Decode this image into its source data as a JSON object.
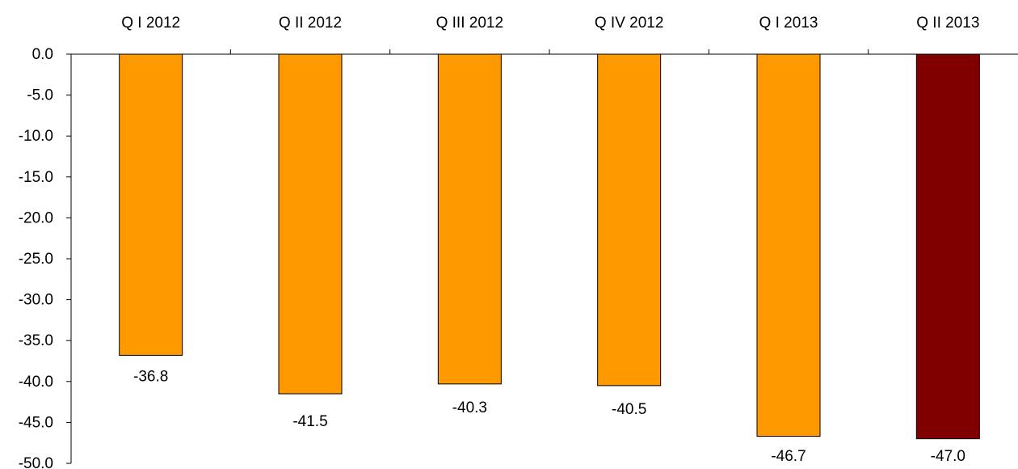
{
  "chart_data": {
    "type": "bar",
    "title": "",
    "xlabel": "",
    "ylabel": "",
    "categories": [
      "Q I 2012",
      "Q II 2012",
      "Q III 2012",
      "Q IV 2012",
      "Q I 2013",
      "Q II 2013"
    ],
    "values": [
      -36.8,
      -41.5,
      -40.3,
      -40.5,
      -46.7,
      -47.0
    ],
    "value_labels": [
      "-36.8",
      "-41.5",
      "-40.3",
      "-40.5",
      "-46.7",
      "-47.0"
    ],
    "ylim": [
      -50,
      0
    ],
    "yticks": [
      0,
      -5,
      -10,
      -15,
      -20,
      -25,
      -30,
      -35,
      -40,
      -45,
      -50
    ],
    "ytick_labels": [
      "0.0",
      "-5.0",
      "-10.0",
      "-15.0",
      "-20.0",
      "-25.0",
      "-30.0",
      "-35.0",
      "-40.0",
      "-45.0",
      "-50.0"
    ],
    "category_axis_position": "top",
    "grid": false,
    "legend": false,
    "colors": {
      "default_bar": "#FF9900",
      "highlight_bar": "#800000",
      "highlight_index": 5,
      "outline": "#000000"
    }
  }
}
